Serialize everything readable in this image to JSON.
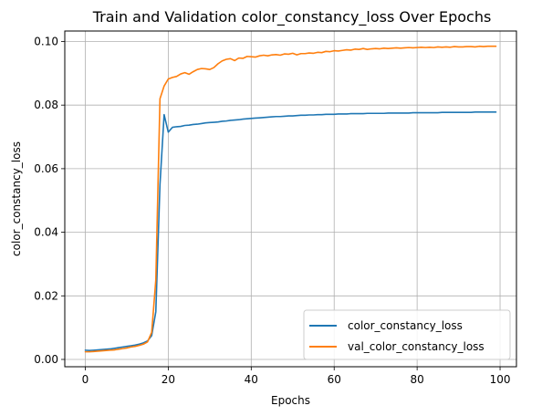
{
  "chart_data": {
    "type": "line",
    "title": "Train and Validation color_constancy_loss Over Epochs",
    "xlabel": "Epochs",
    "ylabel": "color_constancy_loss",
    "xlim": [
      -4.95,
      103.95
    ],
    "ylim": [
      -0.0023,
      0.1033
    ],
    "xticks": [
      0,
      20,
      40,
      60,
      80,
      100
    ],
    "xtick_labels": [
      "0",
      "20",
      "40",
      "60",
      "80",
      "100"
    ],
    "yticks": [
      0.0,
      0.02,
      0.04,
      0.06,
      0.08,
      0.1
    ],
    "ytick_labels": [
      "0.00",
      "0.02",
      "0.04",
      "0.06",
      "0.08",
      "0.10"
    ],
    "grid": true,
    "legend_position": "lower-right",
    "series": [
      {
        "name": "color_constancy_loss",
        "color": "#1f77b4",
        "x": [
          0,
          1,
          2,
          3,
          4,
          5,
          6,
          7,
          8,
          9,
          10,
          11,
          12,
          13,
          14,
          15,
          16,
          17,
          18,
          19,
          20,
          21,
          22,
          23,
          24,
          25,
          26,
          27,
          28,
          29,
          30,
          31,
          32,
          33,
          34,
          35,
          36,
          37,
          38,
          39,
          40,
          41,
          42,
          43,
          44,
          45,
          46,
          47,
          48,
          49,
          50,
          51,
          52,
          53,
          54,
          55,
          56,
          57,
          58,
          59,
          60,
          61,
          62,
          63,
          64,
          65,
          66,
          67,
          68,
          69,
          70,
          71,
          72,
          73,
          74,
          75,
          76,
          77,
          78,
          79,
          80,
          81,
          82,
          83,
          84,
          85,
          86,
          87,
          88,
          89,
          90,
          91,
          92,
          93,
          94,
          95,
          96,
          97,
          98,
          99
        ],
        "values": [
          0.0029,
          0.0028,
          0.0029,
          0.003,
          0.0031,
          0.0032,
          0.0033,
          0.0035,
          0.0037,
          0.0039,
          0.0041,
          0.0043,
          0.0045,
          0.0048,
          0.0052,
          0.0058,
          0.0075,
          0.015,
          0.055,
          0.077,
          0.0715,
          0.073,
          0.0732,
          0.0733,
          0.0736,
          0.0737,
          0.0739,
          0.074,
          0.0742,
          0.0744,
          0.0745,
          0.0746,
          0.0747,
          0.0749,
          0.075,
          0.0752,
          0.0753,
          0.0754,
          0.0756,
          0.0757,
          0.0758,
          0.0759,
          0.076,
          0.0761,
          0.0762,
          0.0763,
          0.0764,
          0.0764,
          0.0765,
          0.0766,
          0.0766,
          0.0767,
          0.0768,
          0.0768,
          0.0769,
          0.0769,
          0.077,
          0.077,
          0.0771,
          0.0771,
          0.0771,
          0.0772,
          0.0772,
          0.0772,
          0.0773,
          0.0773,
          0.0773,
          0.0773,
          0.0774,
          0.0774,
          0.0774,
          0.0774,
          0.0774,
          0.0775,
          0.0775,
          0.0775,
          0.0775,
          0.0775,
          0.0775,
          0.0776,
          0.0776,
          0.0776,
          0.0776,
          0.0776,
          0.0776,
          0.0776,
          0.0777,
          0.0777,
          0.0777,
          0.0777,
          0.0777,
          0.0777,
          0.0777,
          0.0777,
          0.0778,
          0.0778,
          0.0778,
          0.0778,
          0.0778,
          0.0778
        ]
      },
      {
        "name": "val_color_constancy_loss",
        "color": "#ff7f0e",
        "x": [
          0,
          1,
          2,
          3,
          4,
          5,
          6,
          7,
          8,
          9,
          10,
          11,
          12,
          13,
          14,
          15,
          16,
          17,
          18,
          19,
          20,
          21,
          22,
          23,
          24,
          25,
          26,
          27,
          28,
          29,
          30,
          31,
          32,
          33,
          34,
          35,
          36,
          37,
          38,
          39,
          40,
          41,
          42,
          43,
          44,
          45,
          46,
          47,
          48,
          49,
          50,
          51,
          52,
          53,
          54,
          55,
          56,
          57,
          58,
          59,
          60,
          61,
          62,
          63,
          64,
          65,
          66,
          67,
          68,
          69,
          70,
          71,
          72,
          73,
          74,
          75,
          76,
          77,
          78,
          79,
          80,
          81,
          82,
          83,
          84,
          85,
          86,
          87,
          88,
          89,
          90,
          91,
          92,
          93,
          94,
          95,
          96,
          97,
          98,
          99
        ],
        "values": [
          0.0024,
          0.0024,
          0.0025,
          0.0026,
          0.0027,
          0.0028,
          0.0029,
          0.003,
          0.0032,
          0.0034,
          0.0036,
          0.0039,
          0.0041,
          0.0044,
          0.0048,
          0.0055,
          0.0085,
          0.025,
          0.082,
          0.086,
          0.0882,
          0.0887,
          0.089,
          0.0898,
          0.0902,
          0.0897,
          0.0905,
          0.0912,
          0.0915,
          0.0914,
          0.0912,
          0.0918,
          0.093,
          0.0939,
          0.0944,
          0.0946,
          0.094,
          0.0948,
          0.0947,
          0.0953,
          0.0952,
          0.0951,
          0.0955,
          0.0957,
          0.0955,
          0.0958,
          0.0959,
          0.0957,
          0.0961,
          0.096,
          0.0963,
          0.0958,
          0.0962,
          0.0962,
          0.0964,
          0.0963,
          0.0966,
          0.0965,
          0.0969,
          0.0968,
          0.0971,
          0.097,
          0.0972,
          0.0974,
          0.0973,
          0.0976,
          0.0975,
          0.0978,
          0.0975,
          0.0977,
          0.0978,
          0.0977,
          0.0979,
          0.0978,
          0.0979,
          0.098,
          0.0979,
          0.098,
          0.0981,
          0.098,
          0.0981,
          0.0982,
          0.0981,
          0.0982,
          0.0981,
          0.0983,
          0.0982,
          0.0983,
          0.0982,
          0.0984,
          0.0983,
          0.0983,
          0.0984,
          0.0984,
          0.0983,
          0.0985,
          0.0984,
          0.0985,
          0.0985,
          0.0985
        ]
      }
    ]
  }
}
